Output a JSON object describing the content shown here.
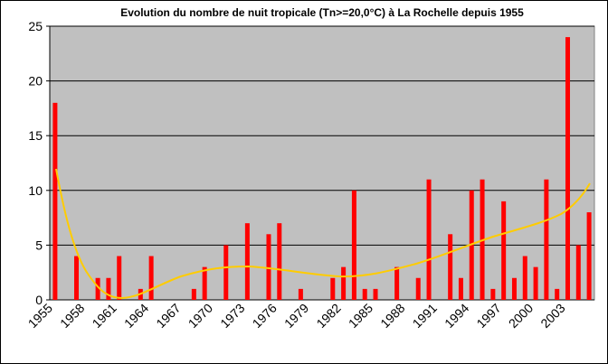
{
  "chart_data": {
    "type": "bar",
    "title": "Evolution du nombre de nuit tropicale (Tn>=20,0°C)  à La Rochelle depuis 1955",
    "categories": [
      "1955",
      null,
      null,
      "1958",
      null,
      null,
      "1961",
      null,
      null,
      "1964",
      null,
      null,
      "1967",
      null,
      null,
      "1970",
      null,
      null,
      "1973",
      null,
      null,
      "1976",
      null,
      null,
      "1979",
      null,
      null,
      "1982",
      null,
      null,
      "1985",
      null,
      null,
      "1988",
      null,
      null,
      "1991",
      null,
      null,
      "1994",
      null,
      null,
      "1997",
      null,
      null,
      "2000",
      null,
      null,
      "2003",
      null,
      null
    ],
    "values": [
      18,
      0,
      4,
      0,
      2,
      2,
      4,
      0,
      1,
      4,
      0,
      0,
      0,
      1,
      3,
      0,
      5,
      0,
      7,
      0,
      6,
      7,
      0,
      1,
      0,
      0,
      2,
      3,
      10,
      1,
      1,
      0,
      3,
      0,
      2,
      11,
      0,
      6,
      2,
      10,
      11,
      1,
      9,
      2,
      4,
      3,
      11,
      1,
      24,
      5,
      8
    ],
    "color": "#ff0000",
    "ylim": [
      0,
      25
    ],
    "yticks": [
      0,
      5,
      10,
      15,
      20,
      25
    ],
    "grid": true
  }
}
